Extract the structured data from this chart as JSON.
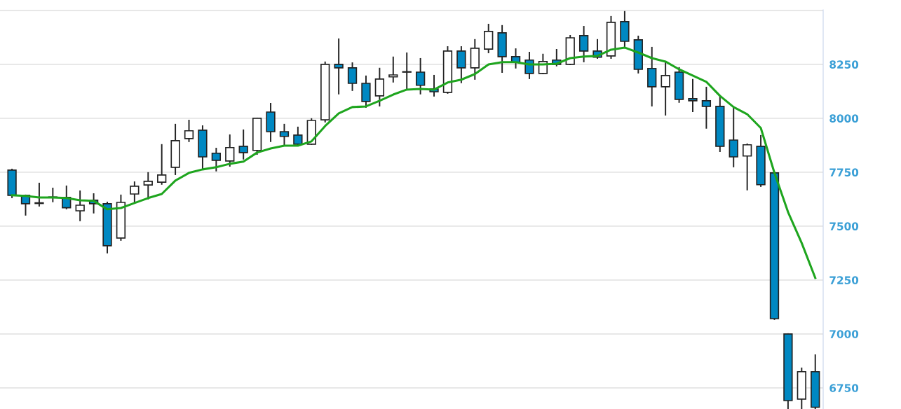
{
  "chart_data": {
    "type": "candlestick",
    "categories": [
      null,
      null,
      null,
      null,
      null,
      null,
      null,
      null,
      null,
      null,
      null,
      null,
      null,
      null,
      null,
      null,
      null,
      null,
      null,
      null,
      null,
      null,
      null,
      null,
      null,
      null,
      null,
      null,
      null,
      null,
      null,
      null,
      null,
      null,
      null,
      null,
      null,
      null,
      null,
      null,
      null,
      null,
      null,
      null,
      null,
      null,
      null,
      null,
      null,
      null,
      null,
      null,
      null,
      null,
      null,
      null,
      null,
      null,
      null,
      null
    ],
    "ohlc": [
      [
        7760,
        7763,
        7633,
        7643
      ],
      [
        7643,
        7643,
        7552,
        7604
      ],
      [
        7605,
        7698,
        7594,
        7608
      ],
      [
        7633,
        7675,
        7614,
        7635
      ],
      [
        7633,
        7685,
        7581,
        7585
      ],
      [
        7571,
        7662,
        7526,
        7597
      ],
      [
        7620,
        7649,
        7562,
        7604
      ],
      [
        7604,
        7610,
        7377,
        7409
      ],
      [
        7445,
        7643,
        7435,
        7610
      ],
      [
        7649,
        7704,
        7607,
        7685
      ],
      [
        7691,
        7747,
        7627,
        7708
      ],
      [
        7704,
        7877,
        7695,
        7737
      ],
      [
        7773,
        7971,
        7740,
        7896
      ],
      [
        7906,
        7990,
        7893,
        7942
      ],
      [
        7945,
        7964,
        7763,
        7821
      ],
      [
        7838,
        7860,
        7757,
        7805
      ],
      [
        7802,
        7922,
        7779,
        7864
      ],
      [
        7870,
        7945,
        7812,
        7841
      ],
      [
        7851,
        8000,
        7834,
        8000
      ],
      [
        8029,
        8068,
        7893,
        7938
      ],
      [
        7938,
        7971,
        7877,
        7916
      ],
      [
        7922,
        7958,
        7880,
        7880
      ],
      [
        7880,
        7997,
        7880,
        7990
      ],
      [
        7993,
        8260,
        7984,
        8250
      ],
      [
        8250,
        8367,
        8114,
        8234
      ],
      [
        8234,
        8256,
        8130,
        8162
      ],
      [
        8162,
        8195,
        8052,
        8078
      ],
      [
        8104,
        8231,
        8058,
        8182
      ],
      [
        8192,
        8283,
        8169,
        8201
      ],
      [
        8214,
        8302,
        8133,
        8216
      ],
      [
        8214,
        8276,
        8114,
        8153
      ],
      [
        8136,
        8198,
        8104,
        8123
      ],
      [
        8120,
        8331,
        8117,
        8312
      ],
      [
        8312,
        8331,
        8166,
        8234
      ],
      [
        8234,
        8364,
        8182,
        8325
      ],
      [
        8321,
        8435,
        8305,
        8403
      ],
      [
        8396,
        8429,
        8214,
        8286
      ],
      [
        8286,
        8321,
        8234,
        8260
      ],
      [
        8270,
        8305,
        8185,
        8208
      ],
      [
        8208,
        8296,
        8208,
        8263
      ],
      [
        8270,
        8318,
        8244,
        8250
      ],
      [
        8250,
        8383,
        8250,
        8373
      ],
      [
        8383,
        8425,
        8263,
        8312
      ],
      [
        8312,
        8364,
        8279,
        8283
      ],
      [
        8289,
        8471,
        8279,
        8445
      ],
      [
        8448,
        8494,
        8328,
        8357
      ],
      [
        8364,
        8380,
        8211,
        8227
      ],
      [
        8231,
        8328,
        8058,
        8146
      ],
      [
        8146,
        8263,
        8016,
        8198
      ],
      [
        8214,
        8234,
        8075,
        8088
      ],
      [
        8091,
        8179,
        8032,
        8081
      ],
      [
        8081,
        8143,
        7955,
        8055
      ],
      [
        8055,
        8104,
        7847,
        7870
      ],
      [
        7899,
        8049,
        7776,
        7821
      ],
      [
        7825,
        7880,
        7669,
        7877
      ],
      [
        7870,
        7919,
        7685,
        7692
      ],
      [
        7747,
        7750,
        7068,
        7071
      ],
      [
        7000,
        7000,
        6655,
        6691
      ],
      [
        6698,
        6841,
        6655,
        6825
      ],
      [
        6825,
        6902,
        6655,
        6660
      ]
    ],
    "colors": [
      "#0088c2",
      "#0088c2",
      "#ffffff",
      "#ffffff",
      "#0088c2",
      "#ffffff",
      "#0088c2",
      "#0088c2",
      "#ffffff",
      "#ffffff",
      "#ffffff",
      "#ffffff",
      "#ffffff",
      "#ffffff",
      "#0088c2",
      "#0088c2",
      "#ffffff",
      "#0088c2",
      "#ffffff",
      "#0088c2",
      "#0088c2",
      "#0088c2",
      "#ffffff",
      "#ffffff",
      "#0088c2",
      "#0088c2",
      "#0088c2",
      "#ffffff",
      "#ffffff",
      "#ffffff",
      "#0088c2",
      "#0088c2",
      "#ffffff",
      "#0088c2",
      "#ffffff",
      "#ffffff",
      "#0088c2",
      "#0088c2",
      "#0088c2",
      "#ffffff",
      "#0088c2",
      "#ffffff",
      "#0088c2",
      "#0088c2",
      "#ffffff",
      "#0088c2",
      "#0088c2",
      "#0088c2",
      "#ffffff",
      "#0088c2",
      "#0088c2",
      "#0088c2",
      "#0088c2",
      "#0088c2",
      "#ffffff",
      "#0088c2",
      "#0088c2",
      "#0088c2",
      "#ffffff",
      "#0088c2"
    ],
    "series": [
      {
        "type": "line",
        "color": "#1ea51e",
        "values": [
          7643,
          7640,
          7633,
          7633,
          7630,
          7620,
          7617,
          7578,
          7584,
          7607,
          7630,
          7649,
          7711,
          7747,
          7763,
          7773,
          7789,
          7799,
          7841,
          7860,
          7873,
          7873,
          7893,
          7964,
          8023,
          8052,
          8055,
          8081,
          8110,
          8133,
          8136,
          8133,
          8166,
          8179,
          8205,
          8250,
          8260,
          8260,
          8250,
          8250,
          8253,
          8279,
          8286,
          8289,
          8318,
          8328,
          8305,
          8279,
          8263,
          8227,
          8198,
          8169,
          8104,
          8052,
          8019,
          7955,
          7747,
          7565,
          7422,
          7260
        ]
      }
    ],
    "ylim": [
      6652,
      8503
    ],
    "yticks": [
      6750,
      7000,
      7250,
      7500,
      7750,
      8000,
      8250,
      {
        "value": 8500,
        "label": null
      }
    ],
    "grid": "y",
    "tick_labels": "y"
  }
}
